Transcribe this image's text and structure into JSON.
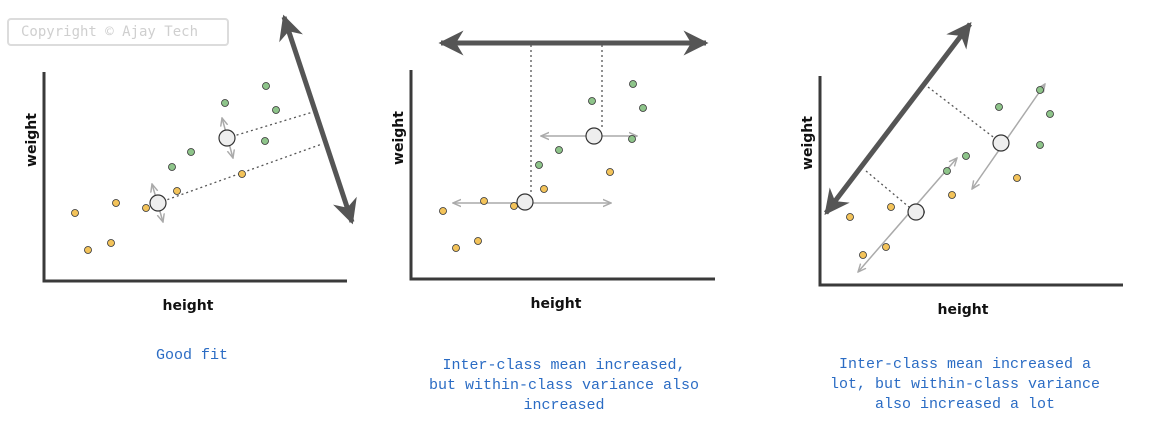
{
  "watermark": "Copyright © Ajay Tech",
  "panels": [
    {
      "xlabel": "height",
      "ylabel": "weight",
      "caption": "Good fit"
    },
    {
      "xlabel": "height",
      "ylabel": "weight",
      "caption_lines": [
        "Inter-class mean increased,",
        "but within-class variance also",
        "increased"
      ]
    },
    {
      "xlabel": "height",
      "ylabel": "weight",
      "caption_lines": [
        "Inter-class mean increased a",
        "lot, but within-class variance",
        "also increased a lot"
      ]
    }
  ],
  "colors": {
    "axis": "#3a3a3a",
    "projection_arrow": "#555555",
    "class_a_fill": "#f3c35a",
    "class_b_fill": "#8ec48a",
    "marker_stroke": "#333333",
    "mean_fill": "#eeeeee",
    "spread_arrow": "#aaaaaa",
    "guide_line": "#555555",
    "caption": "#2b6cc4"
  },
  "icons": {
    "mean_marker": "circle",
    "projection_direction": "double-headed-arrow"
  }
}
